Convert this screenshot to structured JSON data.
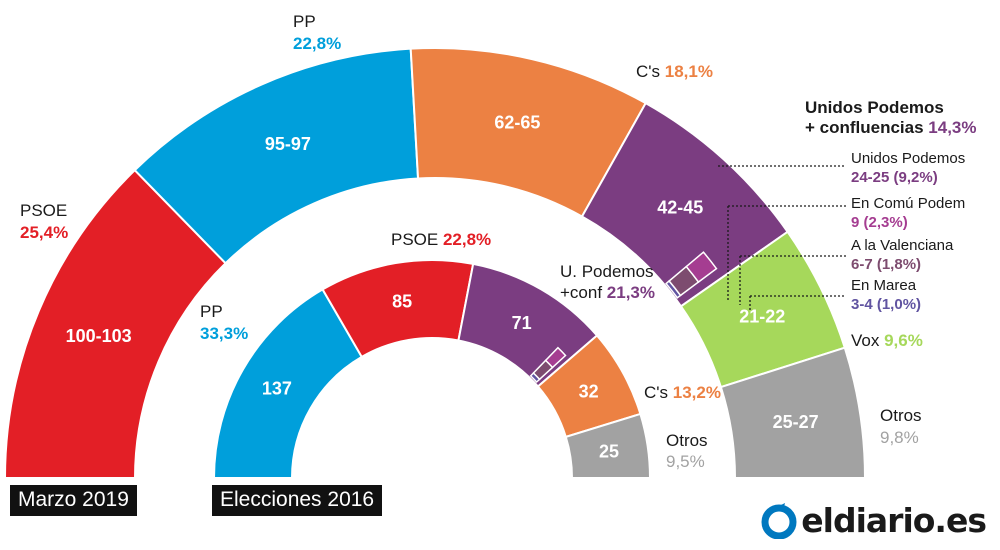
{
  "labels": {
    "outer_title": "Marzo 2019",
    "inner_title": "Elecciones 2016",
    "logo_text": "eldiario.es"
  },
  "colors": {
    "PSOE": "#e31f26",
    "PP": "#009fdb",
    "Cs": "#ec8143",
    "UP": "#7b3d81",
    "UP_ECP": "#a53d91",
    "UP_ALV": "#7d4c6f",
    "UP_MAREA": "#6154a1",
    "Vox": "#a6d85b",
    "Otros": "#a2a2a2"
  },
  "chart_data": [
    {
      "type": "pie",
      "title": "Marzo 2019",
      "slices": [
        {
          "key": "PSOE",
          "party": "PSOE",
          "pct": "25,4%",
          "seats": "100-103"
        },
        {
          "key": "PP",
          "party": "PP",
          "pct": "22,8%",
          "seats": "95-97"
        },
        {
          "key": "Cs",
          "party": "C's",
          "pct": "18,1%",
          "seats": "62-65"
        },
        {
          "key": "UP",
          "party": "Unidos Podemos + confluencias",
          "party_line1": "Unidos Podemos",
          "party_line2": "+ confluencias",
          "pct": "14,3%",
          "seats": "42-45",
          "sub": [
            {
              "key": "UP",
              "name": "Unidos Podemos",
              "value": "24-25 (9,2%)"
            },
            {
              "key": "UP_ECP",
              "name": "En Comú Podem",
              "value": "9 (2,3%)"
            },
            {
              "key": "UP_ALV",
              "name": "A la Valenciana",
              "value": "6-7 (1,8%)"
            },
            {
              "key": "UP_MAREA",
              "name": "En Marea",
              "value": "3-4 (1,0%)"
            }
          ]
        },
        {
          "key": "Vox",
          "party": "Vox",
          "pct": "9,6%",
          "seats": "21-22"
        },
        {
          "key": "Otros",
          "party": "Otros",
          "pct": "9,8%",
          "seats": "25-27"
        }
      ]
    },
    {
      "type": "pie",
      "title": "Elecciones 2016",
      "slices": [
        {
          "key": "PP",
          "party": "PP",
          "pct": "33,3%",
          "seats": "137"
        },
        {
          "key": "PSOE",
          "party": "PSOE",
          "pct": "22,8%",
          "seats": "85"
        },
        {
          "key": "UP",
          "party": "U. Podemos +conf",
          "party_line1": "U. Podemos",
          "party_line2": "+conf",
          "pct": "21,3%",
          "seats": "71"
        },
        {
          "key": "Cs",
          "party": "C's",
          "pct": "13,2%",
          "seats": "32"
        },
        {
          "key": "Otros",
          "party": "Otros",
          "pct": "9,5%",
          "seats": "25"
        }
      ]
    }
  ]
}
